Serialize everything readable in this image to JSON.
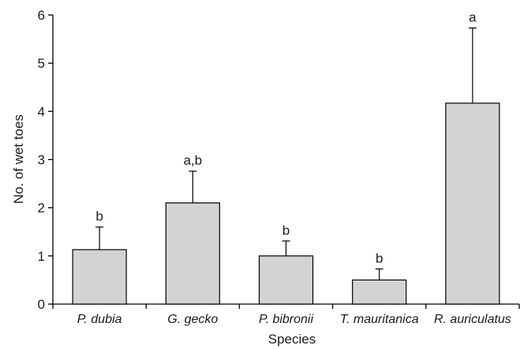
{
  "chart_data": {
    "type": "bar",
    "title": "",
    "xlabel": "Species",
    "ylabel": "No. of wet toes",
    "ylim": [
      0,
      6
    ],
    "yticks": [
      0,
      1,
      2,
      3,
      4,
      5,
      6
    ],
    "grid": false,
    "categories": [
      "P. dubia",
      "G. gecko",
      "P. bibronii",
      "T. mauritanica",
      "R. auriculatus"
    ],
    "values": [
      1.13,
      2.1,
      1.0,
      0.5,
      4.17
    ],
    "error_upper": [
      1.6,
      2.76,
      1.31,
      0.73,
      5.73
    ],
    "significance_labels": [
      "b",
      "a,b",
      "b",
      "b",
      "a"
    ],
    "colors": {
      "bar_fill": "#d3d3d3",
      "bar_stroke": "#000000",
      "axis": "#000000"
    }
  }
}
